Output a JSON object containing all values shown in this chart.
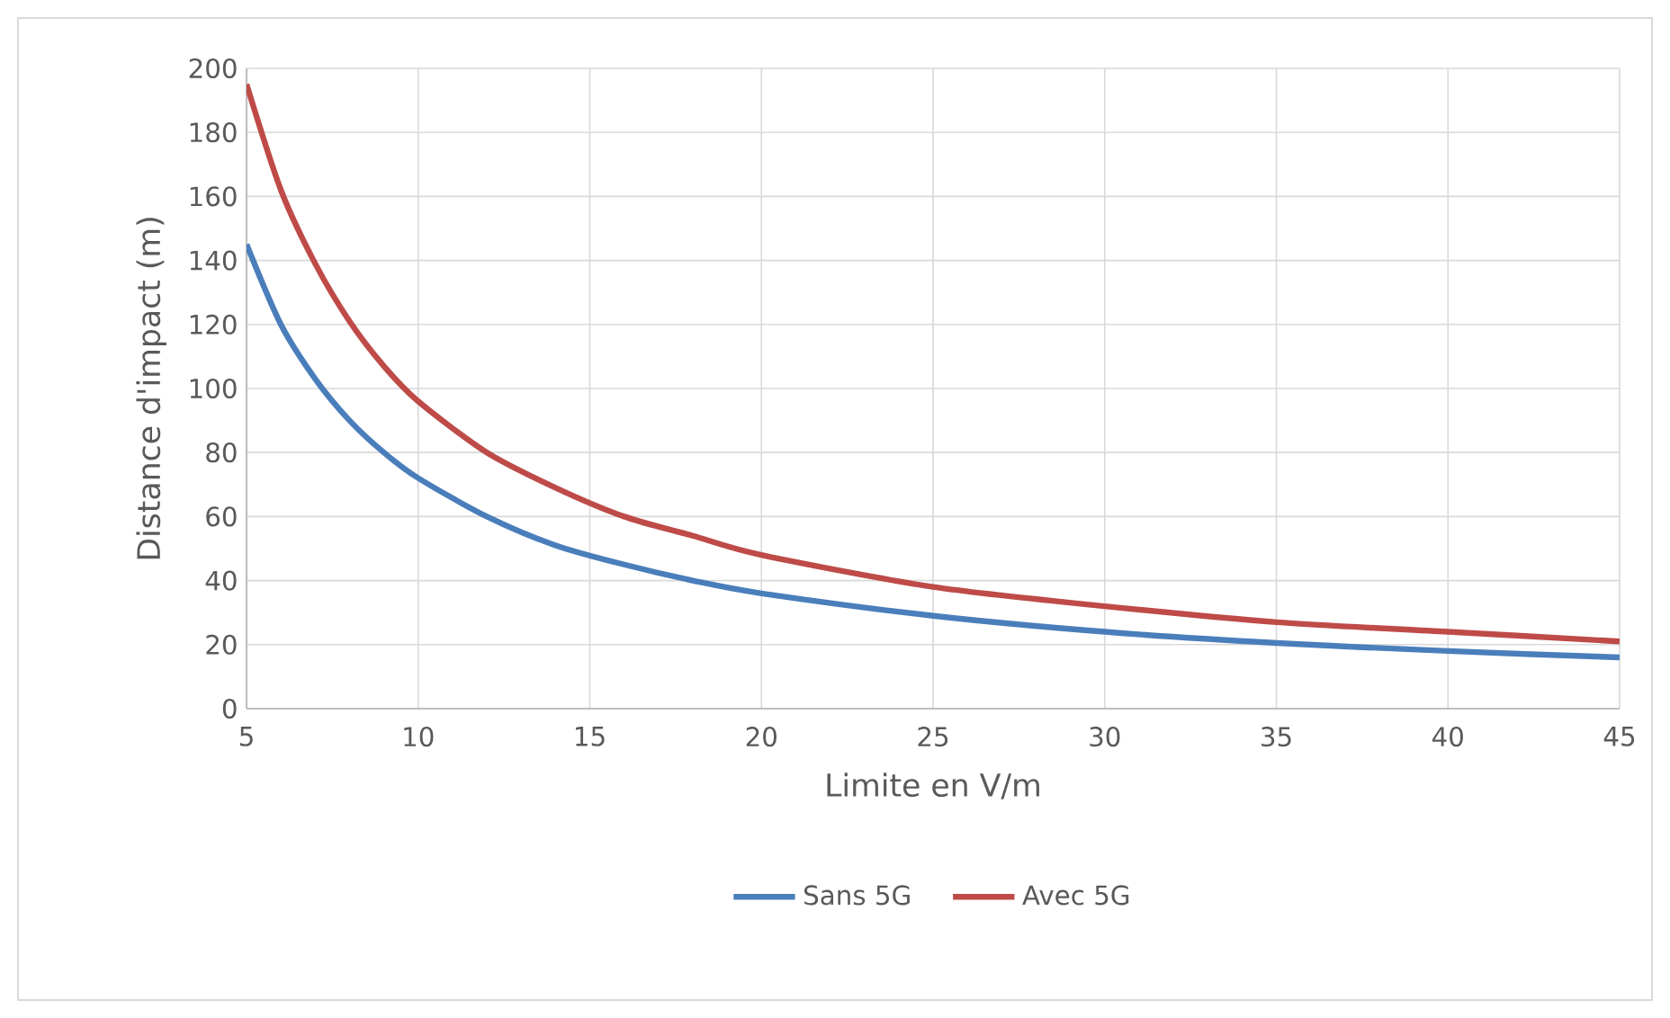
{
  "chart_data": {
    "type": "line",
    "xlabel": "Limite en V/m",
    "ylabel": "Distance d'impact (m)",
    "x": [
      5,
      6,
      7,
      8,
      9,
      10,
      12,
      14,
      16,
      18,
      20,
      25,
      30,
      35,
      40,
      45
    ],
    "series": [
      {
        "name": "Sans 5G",
        "color": "#4a7ebb",
        "values": [
          145,
          120,
          103,
          90,
          80,
          72,
          60,
          51,
          45,
          40,
          36,
          29,
          24,
          20.5,
          18,
          16
        ]
      },
      {
        "name": "Avec 5G",
        "color": "#be4b48",
        "values": [
          195,
          162,
          139,
          121,
          107,
          96,
          80,
          69,
          60,
          54,
          48,
          38,
          32,
          27,
          24,
          21
        ]
      }
    ],
    "xlim": [
      5,
      45
    ],
    "xticks": [
      5,
      10,
      15,
      20,
      25,
      30,
      35,
      40,
      45
    ],
    "ylim": [
      0,
      200
    ],
    "yticks": [
      0,
      20,
      40,
      60,
      80,
      100,
      120,
      140,
      160,
      180,
      200
    ],
    "grid": true,
    "legend": "bottom",
    "marker": "none",
    "line_style": "solid"
  }
}
